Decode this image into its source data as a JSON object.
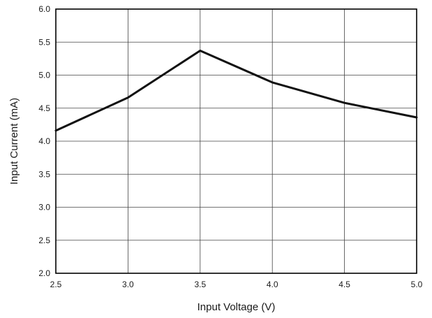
{
  "chart_data": {
    "type": "line",
    "title": "",
    "xlabel": "Input Voltage (V)",
    "ylabel": "Input Current (mA)",
    "xlim": [
      2.5,
      5.0
    ],
    "ylim": [
      2.0,
      6.0
    ],
    "x_ticks": [
      "2.5",
      "3.0",
      "3.5",
      "4.0",
      "4.5",
      "5.0"
    ],
    "y_ticks": [
      "2.0",
      "2.5",
      "3.0",
      "3.5",
      "4.0",
      "4.5",
      "5.0",
      "5.5",
      "6.0"
    ],
    "grid": true,
    "legend": "none",
    "series": [
      {
        "x": [
          2.5,
          3.0,
          3.5,
          4.0,
          4.5,
          5.0
        ],
        "y": [
          4.16,
          4.66,
          5.37,
          4.89,
          4.58,
          4.36
        ],
        "color": "#111111"
      }
    ]
  }
}
